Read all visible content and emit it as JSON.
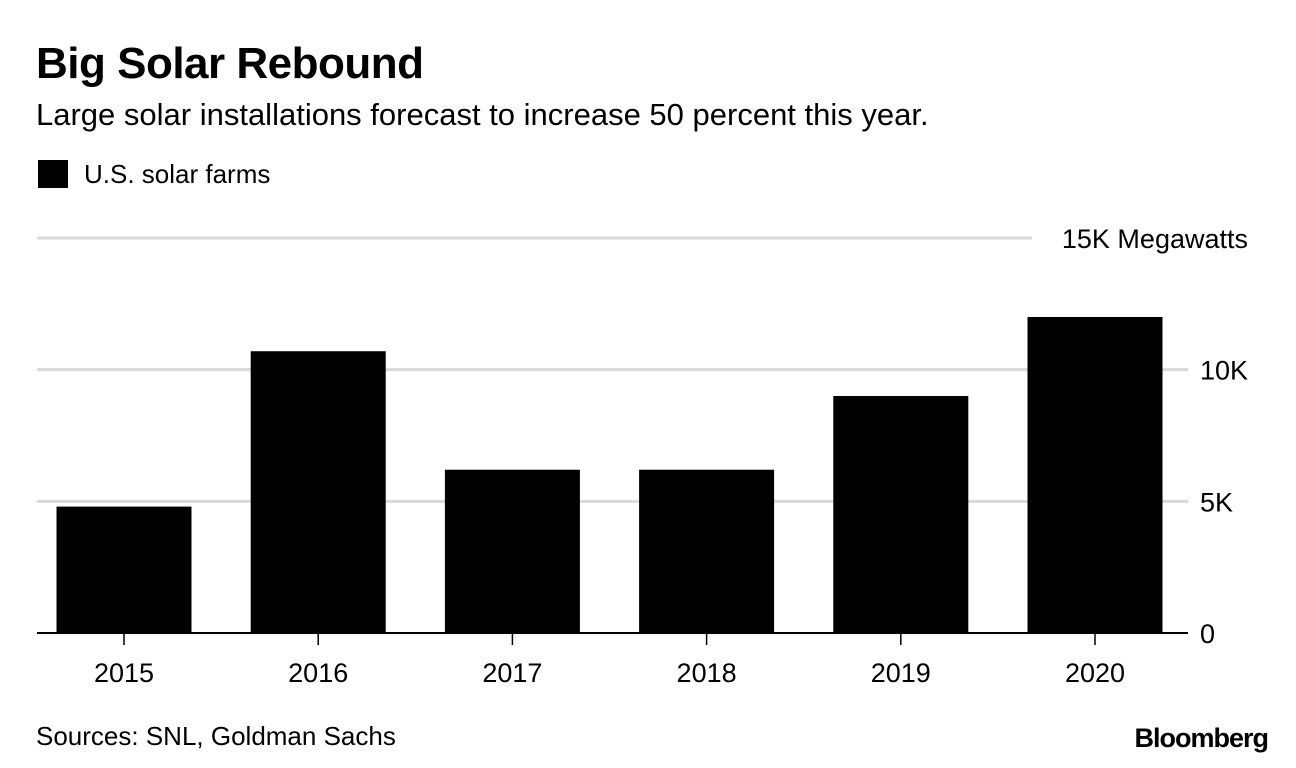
{
  "header": {
    "title": "Big Solar Rebound",
    "subtitle": "Large solar installations forecast to increase 50 percent this year."
  },
  "legend": {
    "label": "U.S. solar farms"
  },
  "footer": {
    "source": "Sources: SNL, Goldman Sachs",
    "brand": "Bloomberg"
  },
  "colors": {
    "bar": "#000000",
    "grid": "#d9d9d9",
    "axis": "#000000"
  },
  "chart_data": {
    "type": "bar",
    "title": "Big Solar Rebound",
    "subtitle": "Large solar installations forecast to increase 50 percent this year.",
    "categories": [
      "2015",
      "2016",
      "2017",
      "2018",
      "2019",
      "2020"
    ],
    "series": [
      {
        "name": "U.S. solar farms",
        "values": [
          4800,
          10700,
          6200,
          6200,
          9000,
          12000
        ]
      }
    ],
    "xlabel": "",
    "ylabel": "Megawatts",
    "ylim": [
      0,
      15000
    ],
    "yticks": [
      {
        "value": 0,
        "label": "0"
      },
      {
        "value": 5000,
        "label": "5K"
      },
      {
        "value": 10000,
        "label": "10K"
      },
      {
        "value": 15000,
        "label": "15K Megawatts"
      }
    ],
    "grid": true,
    "legend_position": "top-left"
  }
}
